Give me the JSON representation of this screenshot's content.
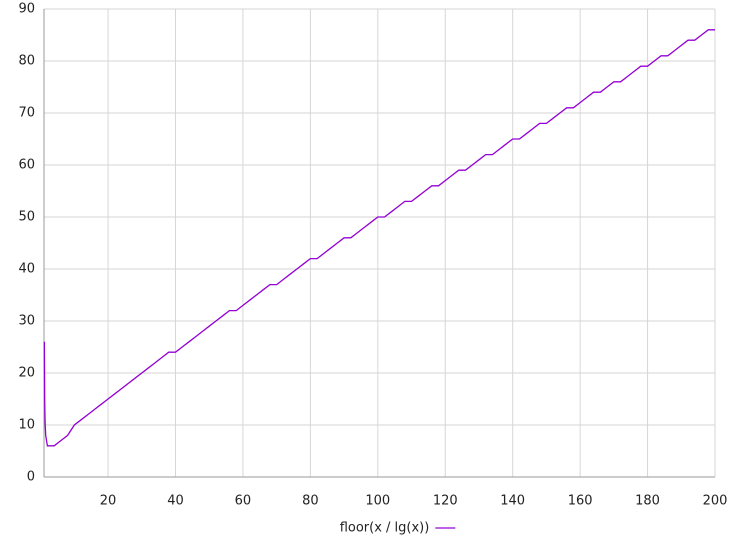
{
  "chart_data": {
    "type": "line",
    "x": [
      1.1,
      1.2,
      1.3,
      1.5,
      2,
      4,
      6,
      8,
      10,
      12,
      14,
      16,
      18,
      20,
      22,
      24,
      26,
      28,
      30,
      32,
      34,
      36,
      38,
      40,
      42,
      44,
      46,
      48,
      50,
      52,
      54,
      56,
      58,
      60,
      62,
      64,
      66,
      68,
      70,
      72,
      74,
      76,
      78,
      80,
      82,
      84,
      86,
      88,
      90,
      92,
      94,
      96,
      98,
      100,
      102,
      104,
      106,
      108,
      110,
      112,
      114,
      116,
      118,
      120,
      122,
      124,
      126,
      128,
      130,
      132,
      134,
      136,
      138,
      140,
      142,
      144,
      146,
      148,
      150,
      152,
      154,
      156,
      158,
      160,
      162,
      164,
      166,
      168,
      170,
      172,
      174,
      176,
      178,
      180,
      182,
      184,
      186,
      188,
      190,
      192,
      194,
      196,
      198,
      200
    ],
    "series": [
      {
        "name": "floor(x / lg(x))",
        "color": "#9400d3",
        "values": [
          26,
          15,
          11,
          8,
          6,
          6,
          7,
          8,
          10,
          11,
          12,
          13,
          14,
          15,
          16,
          17,
          18,
          19,
          20,
          21,
          22,
          23,
          24,
          24,
          25,
          26,
          27,
          28,
          29,
          30,
          31,
          32,
          32,
          33,
          34,
          35,
          36,
          37,
          37,
          38,
          39,
          40,
          41,
          42,
          42,
          43,
          44,
          45,
          46,
          46,
          47,
          48,
          49,
          50,
          50,
          51,
          52,
          53,
          53,
          54,
          55,
          56,
          56,
          57,
          58,
          59,
          59,
          60,
          61,
          62,
          62,
          63,
          64,
          65,
          65,
          66,
          67,
          68,
          68,
          69,
          70,
          71,
          71,
          72,
          73,
          74,
          74,
          75,
          76,
          76,
          77,
          78,
          79,
          79,
          80,
          81,
          81,
          82,
          83,
          84,
          84,
          85,
          86,
          86
        ]
      }
    ],
    "xlim": [
      1,
      200
    ],
    "xticks": [
      20,
      40,
      60,
      80,
      100,
      120,
      140,
      160,
      180,
      200
    ],
    "ylim": [
      0,
      90
    ],
    "yticks": [
      0,
      10,
      20,
      30,
      40,
      50,
      60,
      70,
      80,
      90
    ],
    "grid": true,
    "legend": "bottom"
  }
}
